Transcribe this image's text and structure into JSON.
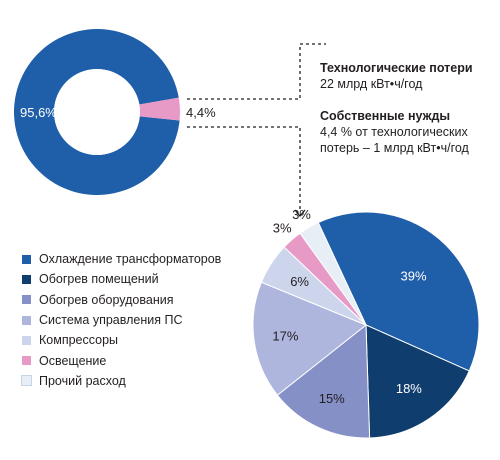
{
  "chart_data": [
    {
      "type": "pie",
      "variant": "donut",
      "slices": [
        {
          "label": "95,6%",
          "value": 95.6,
          "color": "#1f5ea8"
        },
        {
          "label": "4,4%",
          "value": 4.4,
          "color": "#e79ac6"
        }
      ]
    },
    {
      "type": "pie",
      "legend_position": "left",
      "slices": [
        {
          "name": "Охлаждение трансформаторов",
          "value": 39,
          "label": "39%",
          "color": "#1f5ea8"
        },
        {
          "name": "Обогрев помещений",
          "value": 18,
          "label": "18%",
          "color": "#0f3d6e"
        },
        {
          "name": "Обогрев оборудования",
          "value": 15,
          "label": "15%",
          "color": "#8590c7"
        },
        {
          "name": "Система управления ПС",
          "value": 17,
          "label": "17%",
          "color": "#aeb6de"
        },
        {
          "name": "Компрессоры",
          "value": 6,
          "label": "6%",
          "color": "#cdd5ec"
        },
        {
          "name": "Освещение",
          "value": 3,
          "label": "3%",
          "color": "#e79ac6"
        },
        {
          "name": "Прочий расход",
          "value": 3,
          "label": "3%",
          "color": "#e8eef6"
        }
      ]
    }
  ],
  "notes": {
    "losses": {
      "title": "Технологические потери",
      "text": "22 млрд кВт•ч/год"
    },
    "own_needs": {
      "title": "Собственные нужды",
      "line1": "4,4 % от технологических",
      "line2": "потерь – 1 млрд кВт•ч/год"
    }
  },
  "colors": {
    "connector": "#231f20",
    "label_on_dark": "#ffffff",
    "label_dark": "#231f20"
  }
}
